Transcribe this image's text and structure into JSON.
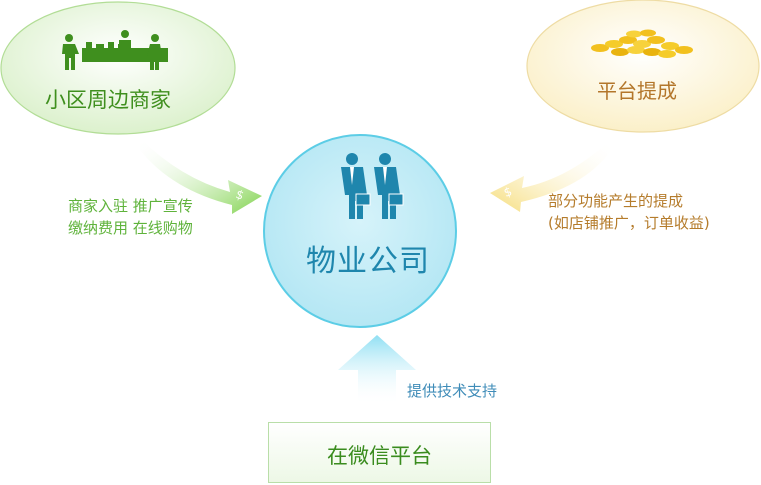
{
  "nodes": {
    "merchant": {
      "label": "小区周边商家",
      "icon": "shopkeepers-icon"
    },
    "platform_commission": {
      "label": "平台提成",
      "icon": "gold-coins-icon"
    },
    "property_company": {
      "label": "物业公司",
      "icon": "business-people-icon"
    },
    "wechat_platform": {
      "label": "在微信平台"
    }
  },
  "edges": {
    "merchant_to_company": {
      "lines": [
        "商家入驻 推广宣传",
        "缴纳费用 在线购物"
      ]
    },
    "platform_to_company": {
      "lines": [
        "部分功能产生的提成",
        "(如店铺推广，订单收益)"
      ]
    },
    "wechat_to_company": {
      "label": "提供技术支持"
    }
  },
  "colors": {
    "green_text": "#3f8f1e",
    "light_green_text": "#5fb33b",
    "gold_text": "#b57c2c",
    "blue_text": "#1f86ad",
    "center_fill": "#c4ecf7",
    "center_stroke": "#5ccde6"
  }
}
